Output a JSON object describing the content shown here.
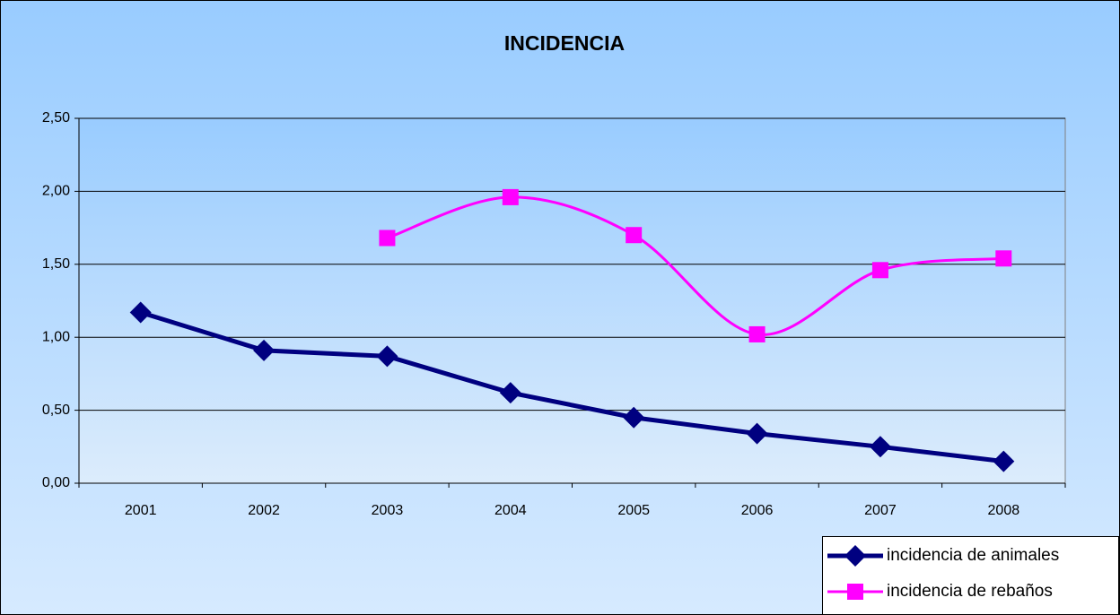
{
  "chart_data": {
    "type": "line",
    "title": "INCIDENCIA",
    "categories": [
      "2001",
      "2002",
      "2003",
      "2004",
      "2005",
      "2006",
      "2007",
      "2008"
    ],
    "series": [
      {
        "name": "incidencia de animales",
        "color": "#000080",
        "marker": "diamond",
        "smooth": false,
        "values": [
          1.17,
          0.91,
          0.87,
          0.62,
          0.45,
          0.34,
          0.25,
          0.15
        ]
      },
      {
        "name": "incidencia de rebaños",
        "color": "#ff00ff",
        "marker": "square",
        "smooth": true,
        "values": [
          null,
          null,
          1.68,
          1.96,
          1.7,
          1.02,
          1.46,
          1.54
        ]
      }
    ],
    "ylim": [
      0,
      2.5
    ],
    "yticks": [
      {
        "value": 0,
        "label": "0,00"
      },
      {
        "value": 0.5,
        "label": "0,50"
      },
      {
        "value": 1,
        "label": "1,00"
      },
      {
        "value": 1.5,
        "label": "1,50"
      },
      {
        "value": 2,
        "label": "2,00"
      },
      {
        "value": 2.5,
        "label": "2,50"
      }
    ],
    "grid": true,
    "legend": "bottom-right"
  }
}
